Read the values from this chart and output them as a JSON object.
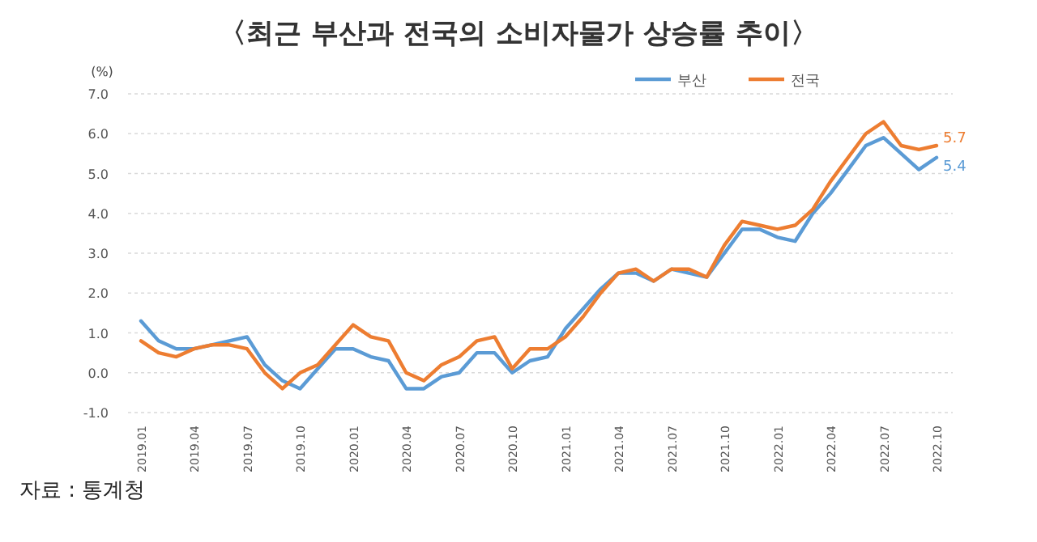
{
  "chart_data": {
    "type": "line",
    "title": "〈최근 부산과 전국의 소비자물가 상승률 추이〉",
    "ylabel": "(%)",
    "categories": [
      "2019.01",
      null,
      null,
      "2019.04",
      null,
      null,
      "2019.07",
      null,
      null,
      "2019.10",
      null,
      null,
      "2020.01",
      null,
      null,
      "2020.04",
      null,
      null,
      "2020.07",
      null,
      null,
      "2020.10",
      null,
      null,
      "2021.01",
      null,
      null,
      "2021.04",
      null,
      null,
      "2021.07",
      null,
      null,
      "2021.10",
      null,
      null,
      "2022.01",
      null,
      null,
      "2022.04",
      null,
      null,
      "2022.07",
      null,
      null,
      "2022.10"
    ],
    "series": [
      {
        "name": "부산",
        "color": "#5b9bd5",
        "values": [
          1.3,
          0.8,
          0.6,
          0.6,
          0.7,
          0.8,
          0.9,
          0.2,
          -0.2,
          -0.4,
          0.1,
          0.6,
          0.6,
          0.4,
          0.3,
          -0.4,
          -0.4,
          -0.1,
          0.0,
          0.5,
          0.5,
          0.0,
          0.3,
          0.4,
          1.1,
          1.6,
          2.1,
          2.5,
          2.5,
          2.3,
          2.6,
          2.5,
          2.4,
          3.0,
          3.6,
          3.6,
          3.4,
          3.3,
          4.0,
          4.5,
          5.1,
          5.7,
          5.9,
          5.5,
          5.1,
          5.4
        ]
      },
      {
        "name": "전국",
        "color": "#ed7d31",
        "values": [
          0.8,
          0.5,
          0.4,
          0.6,
          0.7,
          0.7,
          0.6,
          0.0,
          -0.4,
          0.0,
          0.2,
          0.7,
          1.2,
          0.9,
          0.8,
          0.0,
          -0.2,
          0.2,
          0.4,
          0.8,
          0.9,
          0.1,
          0.6,
          0.6,
          0.9,
          1.4,
          2.0,
          2.5,
          2.6,
          2.3,
          2.6,
          2.6,
          2.4,
          3.2,
          3.8,
          3.7,
          3.6,
          3.7,
          4.1,
          4.8,
          5.4,
          6.0,
          6.3,
          5.7,
          5.6,
          5.7
        ]
      }
    ],
    "ylim": [
      -1,
      7
    ],
    "yticks": [
      {
        "value": -1,
        "label": "-1.0"
      },
      {
        "value": 0,
        "label": "0.0"
      },
      {
        "value": 1,
        "label": "1.0"
      },
      {
        "value": 2,
        "label": "2.0"
      },
      {
        "value": 3,
        "label": "3.0"
      },
      {
        "value": 4,
        "label": "4.0"
      },
      {
        "value": 5,
        "label": "5.0"
      },
      {
        "value": 6,
        "label": "6.0"
      },
      {
        "value": 7,
        "label": "7.0"
      }
    ],
    "grid": "y",
    "legend": "top right",
    "annotations": [
      {
        "text": "5.7",
        "x": "2022.10",
        "y": 5.7
      },
      {
        "text": "5.4",
        "x": "2022.10",
        "y": 5.4
      },
      "자료 : 통계청"
    ]
  }
}
